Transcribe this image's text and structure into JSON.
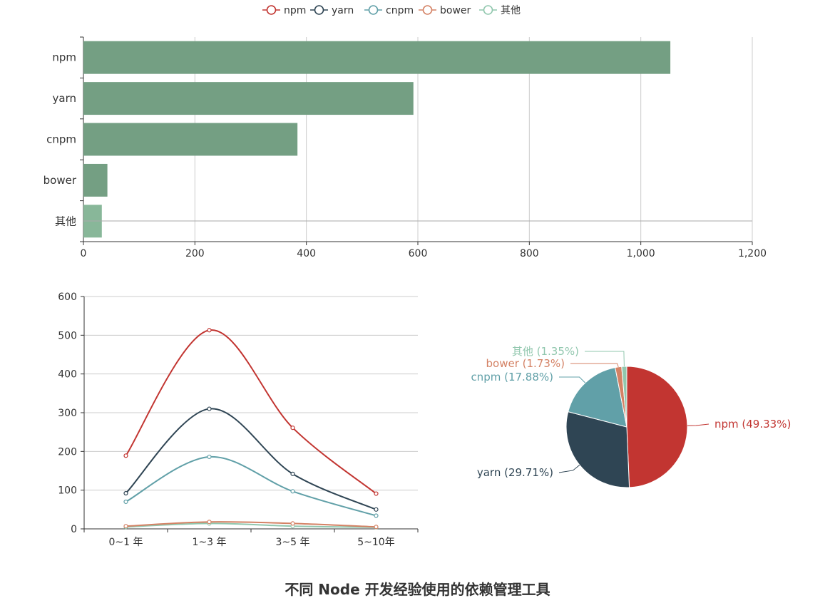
{
  "title": "不同 Node 开发经验使用的依赖管理工具",
  "legend": {
    "items": [
      {
        "name": "npm",
        "color": "#c23531"
      },
      {
        "name": "yarn",
        "color": "#2f4554"
      },
      {
        "name": "cnpm",
        "color": "#61a0a8"
      },
      {
        "name": "bower",
        "color": "#d48265"
      },
      {
        "name": "其他",
        "color": "#91c7ae"
      }
    ]
  },
  "chart_data": [
    {
      "type": "bar",
      "orientation": "horizontal",
      "categories": [
        "npm",
        "yarn",
        "cnpm",
        "bower",
        "其他"
      ],
      "values": [
        1053,
        592,
        384,
        43,
        33
      ],
      "xlim": [
        0,
        1200
      ],
      "xticks": [
        "0",
        "200",
        "400",
        "600",
        "800",
        "1,000",
        "1,200"
      ],
      "bar_color": "#749f83",
      "grid": true
    },
    {
      "type": "line",
      "smooth": true,
      "categories": [
        "0~1 年",
        "1~3 年",
        "3~5 年",
        "5~10年"
      ],
      "ylim": [
        0,
        600
      ],
      "yticks": [
        "0",
        "100",
        "200",
        "300",
        "400",
        "500",
        "600"
      ],
      "series": [
        {
          "name": "npm",
          "color": "#c23531",
          "values": [
            189,
            513,
            261,
            91
          ]
        },
        {
          "name": "yarn",
          "color": "#2f4554",
          "values": [
            92,
            310,
            142,
            50
          ]
        },
        {
          "name": "cnpm",
          "color": "#61a0a8",
          "values": [
            70,
            186,
            97,
            34
          ]
        },
        {
          "name": "bower",
          "color": "#d48265",
          "values": [
            7,
            18,
            14,
            5
          ]
        },
        {
          "name": "其他",
          "color": "#91c7ae",
          "values": [
            5,
            14,
            7,
            4
          ]
        }
      ],
      "grid": true
    },
    {
      "type": "pie",
      "slices": [
        {
          "name": "npm",
          "percent": 49.33,
          "label": "npm (49.33%)",
          "color": "#c23531"
        },
        {
          "name": "yarn",
          "percent": 29.71,
          "label": "yarn (29.71%)",
          "color": "#2f4554"
        },
        {
          "name": "cnpm",
          "percent": 17.88,
          "label": "cnpm (17.88%)",
          "color": "#61a0a8"
        },
        {
          "name": "bower",
          "percent": 1.73,
          "label": "bower (1.73%)",
          "color": "#d48265"
        },
        {
          "name": "其他",
          "percent": 1.35,
          "label": "其他 (1.35%)",
          "color": "#91c7ae"
        }
      ]
    }
  ]
}
